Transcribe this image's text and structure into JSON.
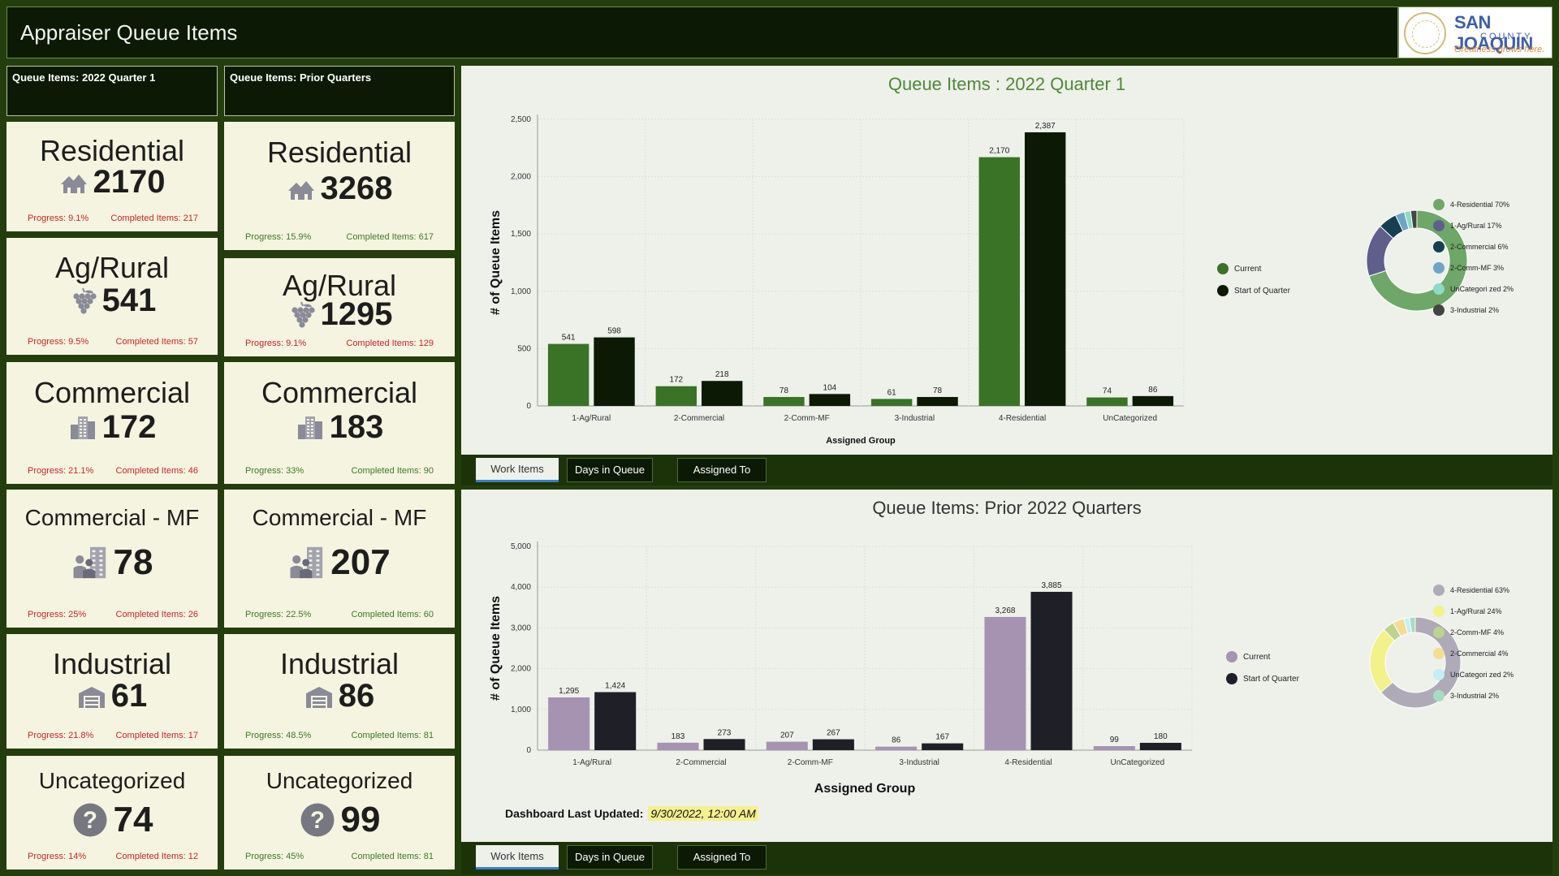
{
  "header": {
    "title": "Appraiser Queue Items"
  },
  "logo": {
    "line1": "SAN JOAQUIN",
    "line2": "COUNTY",
    "tagline": "Greatness grows here."
  },
  "columns": {
    "current": "Queue Items: 2022 Quarter 1",
    "prior": "Queue Items: Prior Quarters"
  },
  "current_cards": [
    {
      "title": "Residential",
      "icon": "houses-icon",
      "value": "2170",
      "progress": "Progress: 9.1%",
      "completed": "Completed Items: 217"
    },
    {
      "title": "Ag/Rural",
      "icon": "grapes-icon",
      "value": "541",
      "progress": "Progress: 9.5%",
      "completed": "Completed Items: 57"
    },
    {
      "title": "Commercial",
      "icon": "buildings-icon",
      "value": "172",
      "progress": "Progress: 21.1%",
      "completed": "Completed Items: 46"
    },
    {
      "title": "Commercial - MF",
      "icon": "people-building-icon",
      "value": "78",
      "progress": "Progress: 25%",
      "completed": "Completed Items: 26"
    },
    {
      "title": "Industrial",
      "icon": "warehouse-icon",
      "value": "61",
      "progress": "Progress: 21.8%",
      "completed": "Completed Items: 17"
    },
    {
      "title": "Uncategorized",
      "icon": "question-icon",
      "value": "74",
      "progress": "Progress: 14%",
      "completed": "Completed Items: 12"
    }
  ],
  "prior_cards": [
    {
      "title": "Residential",
      "icon": "houses-icon",
      "value": "3268",
      "progress": "Progress: 15.9%",
      "completed": "Completed Items: 617"
    },
    {
      "title": "Ag/Rural",
      "icon": "grapes-icon",
      "value": "1295",
      "progress": "Progress: 9.1%",
      "completed": "Completed Items: 129"
    },
    {
      "title": "Commercial",
      "icon": "buildings-icon",
      "value": "183",
      "progress": "Progress: 33%",
      "completed": "Completed Items: 90"
    },
    {
      "title": "Commercial - MF",
      "icon": "people-building-icon",
      "value": "207",
      "progress": "Progress: 22.5%",
      "completed": "Completed Items: 60"
    },
    {
      "title": "Industrial",
      "icon": "warehouse-icon",
      "value": "86",
      "progress": "Progress: 48.5%",
      "completed": "Completed Items: 81"
    },
    {
      "title": "Uncategorized",
      "icon": "question-icon",
      "value": "99",
      "progress": "Progress: 45%",
      "completed": "Completed Items: 81"
    }
  ],
  "tabs_top": [
    "Work Items",
    "Days in Queue",
    "Assigned To"
  ],
  "tabs_bottom": [
    "Work Items",
    "Days in Queue",
    "Assigned To"
  ],
  "last_updated": {
    "label": "Dashboard Last Updated:",
    "value": "9/30/2022, 12:00 AM"
  },
  "colors": {
    "current_top": "#3a7226",
    "start_top": "#0c1a05",
    "current_bottom": "#a593b1",
    "start_bottom": "#1f1f28"
  },
  "chart_data": [
    {
      "type": "bar",
      "title": "Queue Items : 2022 Quarter 1",
      "xlabel": "Assigned Group",
      "ylabel": "# of Queue Items",
      "categories": [
        "1-Ag/Rural",
        "2-Commercial",
        "2-Comm-MF",
        "3-Industrial",
        "4-Residential",
        "UnCategorized"
      ],
      "series": [
        {
          "name": "Current",
          "values": [
            541,
            172,
            78,
            61,
            2170,
            74
          ],
          "labels": [
            "541",
            "172",
            "78",
            "61",
            "2,170",
            "74"
          ]
        },
        {
          "name": "Start of Quarter",
          "values": [
            598,
            218,
            104,
            78,
            2387,
            86
          ],
          "labels": [
            "598",
            "218",
            "104",
            "78",
            "2,387",
            "86"
          ]
        }
      ],
      "ylim": [
        0,
        2500
      ],
      "yticks": [
        "0",
        "500",
        "1,000",
        "1,500",
        "2,000",
        "2,500"
      ],
      "ytick_values": [
        0,
        500,
        1000,
        1500,
        2000,
        2500
      ],
      "grid": true,
      "legend": "left-of-pie",
      "pie": {
        "type": "pie",
        "slices": [
          {
            "label": "4-Residential",
            "pct": "70%",
            "value": 70,
            "color": "#6ea768"
          },
          {
            "label": "1-Ag/Rural",
            "pct": "17%",
            "value": 17,
            "color": "#5f5f8c"
          },
          {
            "label": "2-Commercial",
            "pct": "6%",
            "value": 6,
            "color": "#173f52"
          },
          {
            "label": "2-Comm-MF",
            "pct": "3%",
            "value": 3,
            "color": "#6fa5c4"
          },
          {
            "label": "UnCategori zed",
            "pct": "2%",
            "value": 2,
            "color": "#8fd9c5"
          },
          {
            "label": "3-Industrial",
            "pct": "2%",
            "value": 2,
            "color": "#444444"
          }
        ]
      }
    },
    {
      "type": "bar",
      "title": "Queue Items: Prior 2022 Quarters",
      "xlabel": "Assigned Group",
      "ylabel": "# of Queue Items",
      "categories": [
        "1-Ag/Rural",
        "2-Commercial",
        "2-Comm-MF",
        "3-Industrial",
        "4-Residential",
        "UnCategorized"
      ],
      "series": [
        {
          "name": "Current",
          "values": [
            1295,
            183,
            207,
            86,
            3268,
            99
          ],
          "labels": [
            "1,295",
            "183",
            "207",
            "86",
            "3,268",
            "99"
          ]
        },
        {
          "name": "Start of Quarter",
          "values": [
            1424,
            273,
            267,
            167,
            3885,
            180
          ],
          "labels": [
            "1,424",
            "273",
            "267",
            "167",
            "3,885",
            "180"
          ]
        }
      ],
      "ylim": [
        0,
        5000
      ],
      "yticks": [
        "0",
        "1,000",
        "2,000",
        "3,000",
        "4,000",
        "5,000"
      ],
      "ytick_values": [
        0,
        1000,
        2000,
        3000,
        4000,
        5000
      ],
      "grid": true,
      "legend": "left-of-pie",
      "pie": {
        "type": "pie",
        "slices": [
          {
            "label": "4-Residential",
            "pct": "63%",
            "value": 63,
            "color": "#aeaab8"
          },
          {
            "label": "1-Ag/Rural",
            "pct": "24%",
            "value": 24,
            "color": "#f3f18a"
          },
          {
            "label": "2-Comm-MF",
            "pct": "4%",
            "value": 4,
            "color": "#bcd48d"
          },
          {
            "label": "2-Commercial",
            "pct": "4%",
            "value": 4,
            "color": "#f5dc95"
          },
          {
            "label": "UnCategori zed",
            "pct": "2%",
            "value": 2,
            "color": "#c4eef5"
          },
          {
            "label": "3-Industrial",
            "pct": "2%",
            "value": 2,
            "color": "#a8dcc0"
          }
        ]
      }
    }
  ]
}
